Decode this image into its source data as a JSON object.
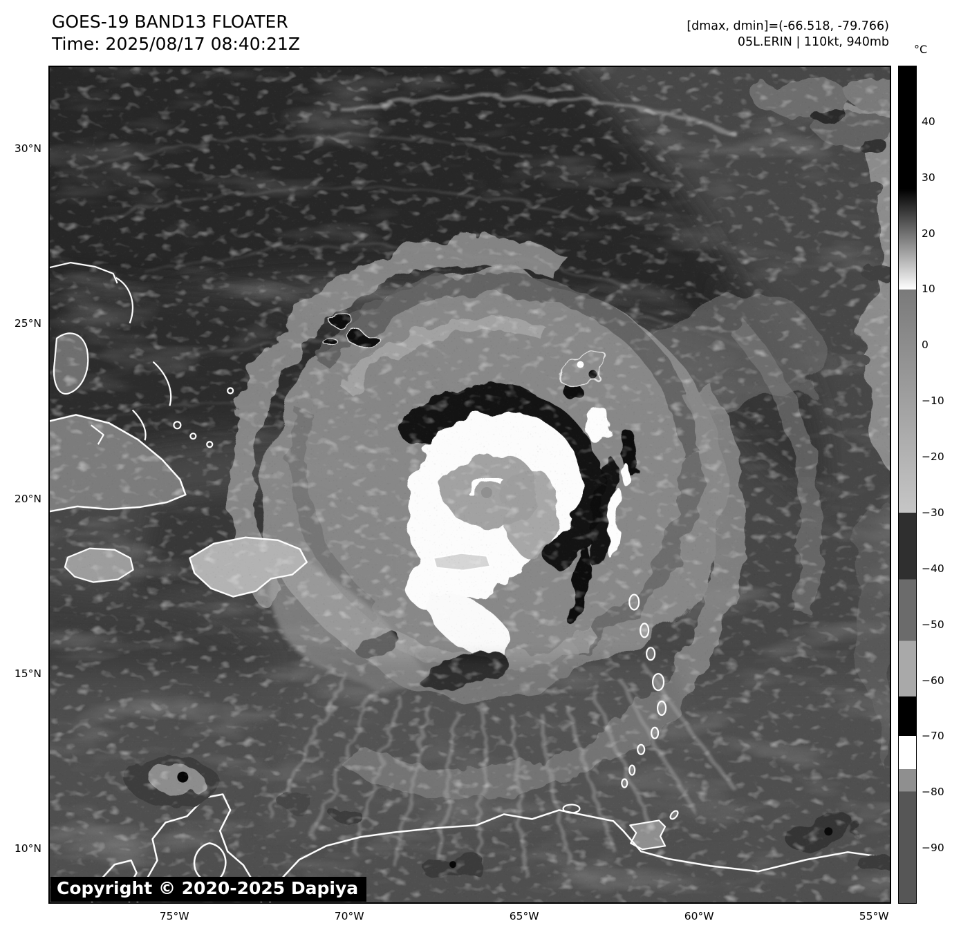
{
  "header": {
    "title": "GOES-19 BAND13 FLOATER",
    "time": "Time: 2025/08/17 08:40:21Z",
    "range_label": "[dmax, dmin]=(-66.518, -79.766)",
    "storm_label": "05L.ERIN | 110kt, 940mb"
  },
  "colorbar": {
    "unit_label": "°C",
    "domain": [
      50,
      -100
    ],
    "ticks": [
      "40",
      "30",
      "20",
      "10",
      "0",
      "−10",
      "−20",
      "−30",
      "−40",
      "−50",
      "−60",
      "−70",
      "−80",
      "−90"
    ],
    "segments": [
      {
        "from": 50,
        "to": 28,
        "color": "#000000"
      },
      {
        "from": 28,
        "to": 10,
        "gradient": true,
        "color_start": "#000000",
        "color_end": "#ffffff"
      },
      {
        "from": 10,
        "to": -30,
        "gradient": true,
        "color_start": "#7a7a7a",
        "color_end": "#c6c6c6"
      },
      {
        "from": -30,
        "to": -42,
        "color": "#2f2f2f"
      },
      {
        "from": -42,
        "to": -53,
        "color": "#6b6b6b"
      },
      {
        "from": -53,
        "to": -63,
        "color": "#a9a9a9"
      },
      {
        "from": -63,
        "to": -70,
        "color": "#000000"
      },
      {
        "from": -70,
        "to": -76,
        "color": "#ffffff"
      },
      {
        "from": -76,
        "to": -80,
        "color": "#8f8f8f"
      },
      {
        "from": -80,
        "to": -100,
        "color": "#565656"
      }
    ]
  },
  "map": {
    "lat_labels": [
      "30°N",
      "25°N",
      "20°N",
      "15°N",
      "10°N"
    ],
    "lon_labels": [
      "75°W",
      "70°W",
      "65°W",
      "60°W",
      "55°W"
    ],
    "copyright": "Copyright © 2020-2025 Dapiya"
  },
  "colors": {
    "coastline": "#ffffff",
    "frame": "#000000",
    "copyright_bg": "#000000",
    "copyright_fg": "#ffffff",
    "page_bg": "#ffffff"
  }
}
